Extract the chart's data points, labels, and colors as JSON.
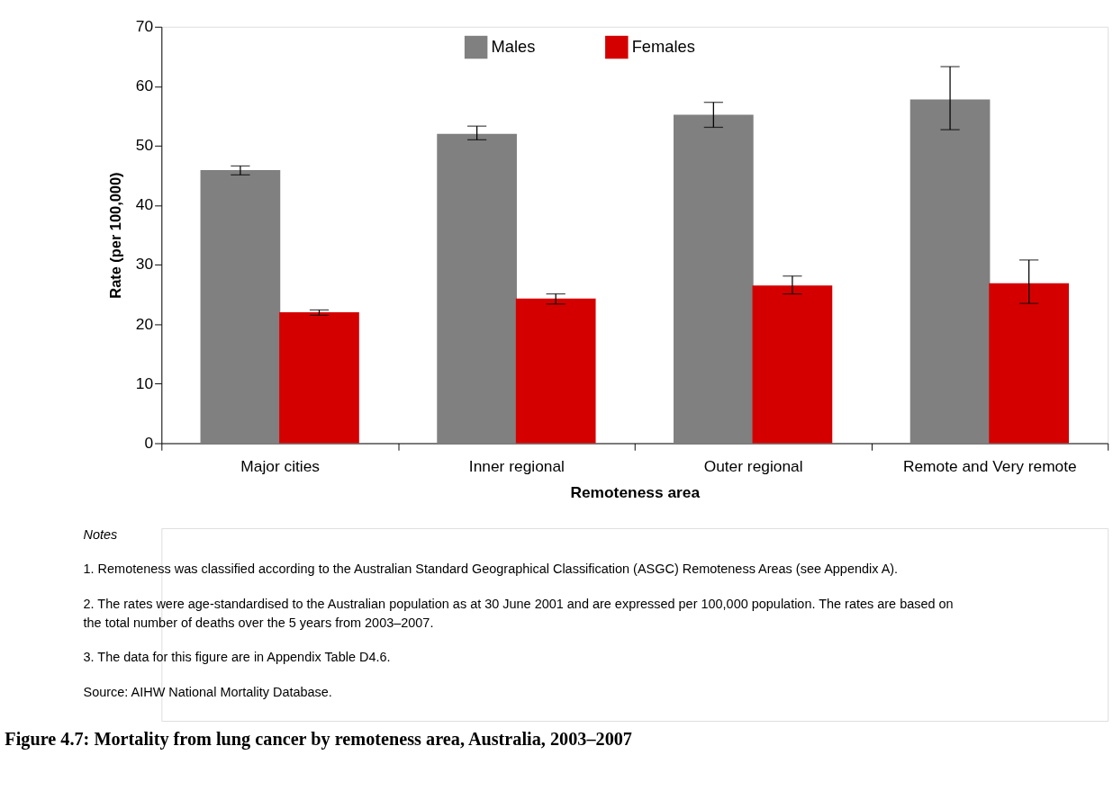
{
  "chart_data": {
    "type": "bar",
    "title": "Figure 4.7: Mortality from lung cancer by remoteness area, Australia, 2003–2007",
    "xlabel": "Remoteness area",
    "ylabel": "Rate (per 100,000)",
    "categories": [
      "Major cities",
      "Inner regional",
      "Outer regional",
      "Remote and Very remote"
    ],
    "series": [
      {
        "name": "Males",
        "color": "#808080",
        "values": [
          45.9,
          52.0,
          55.2,
          57.8
        ],
        "errors": [
          [
            45.1,
            46.6
          ],
          [
            51.0,
            53.3
          ],
          [
            53.1,
            57.3
          ],
          [
            52.7,
            63.3
          ]
        ]
      },
      {
        "name": "Females",
        "color": "#d40000",
        "values": [
          22.0,
          24.3,
          26.5,
          26.9
        ],
        "errors": [
          [
            21.5,
            22.4
          ],
          [
            23.4,
            25.1
          ],
          [
            25.1,
            28.1
          ],
          [
            23.5,
            30.8
          ]
        ]
      }
    ],
    "ylim": [
      0,
      70
    ],
    "yticks": [
      0,
      10,
      20,
      30,
      40,
      50,
      60,
      70
    ],
    "grid": false,
    "legend": "top",
    "annotations": [
      "Notes",
      "1.\tRemoteness was classified according to the Australian Standard Geographical Classification (ASGC) Remoteness Areas (see Appendix A).",
      "2.\tThe rates were age-standardised to the Australian population as at 30 June 2001 and are expressed per 100,000 population. The rates are based on the total number of deaths over the 5 years from 2003–2007.",
      "3.\tThe data for this figure are in Appendix Table D4.6.",
      "Source: AIHW National Mortality Database."
    ]
  }
}
